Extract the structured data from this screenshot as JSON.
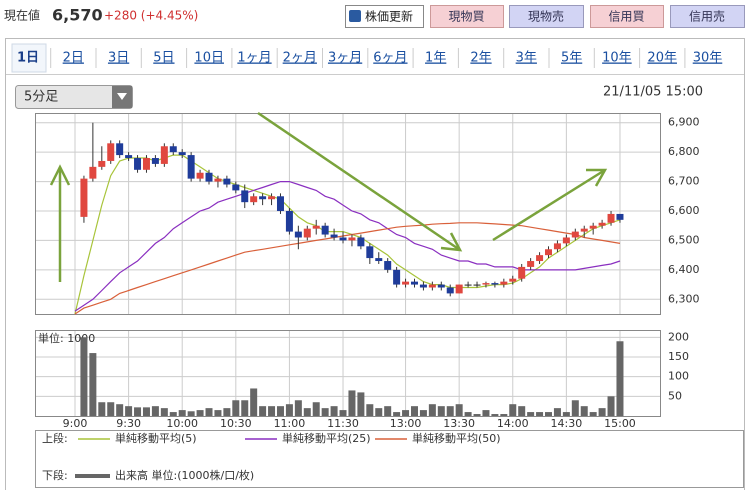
{
  "header": {
    "label": "現在値",
    "price": "6,570",
    "change": "+280 (+4.45%)"
  },
  "buttons": [
    "株価更新",
    "現物買",
    "現物売",
    "信用買",
    "信用売"
  ],
  "tabs": [
    "1日",
    "2日",
    "3日",
    "5日",
    "10日",
    "1ヶ月",
    "2ヶ月",
    "3ヶ月",
    "6ヶ月",
    "1年",
    "2年",
    "3年",
    "5年",
    "10年",
    "20年",
    "30年"
  ],
  "interval": "5分足",
  "timestamp": "21/11/05 15:00",
  "chart_data": {
    "type": "candlestick",
    "categories": [
      "9:00",
      null,
      null,
      null,
      null,
      null,
      "9:30",
      null,
      null,
      null,
      null,
      null,
      "10:00",
      null,
      null,
      null,
      null,
      null,
      "10:30",
      null,
      null,
      null,
      null,
      null,
      "11:00",
      null,
      null,
      null,
      null,
      null,
      "11:30",
      null,
      null,
      null,
      null,
      null,
      null,
      "13:00",
      null,
      null,
      null,
      null,
      null,
      "13:30",
      null,
      null,
      null,
      null,
      null,
      "14:00",
      null,
      null,
      null,
      null,
      null,
      "14:30",
      null,
      null,
      null,
      null,
      null,
      "15:00"
    ],
    "up_color": "#e0473f",
    "down_color": "#1f3c9a",
    "ohlc": [
      null,
      [
        6580,
        6720,
        6560,
        6710
      ],
      [
        6710,
        6900,
        6700,
        6750
      ],
      [
        6750,
        6820,
        6740,
        6770
      ],
      [
        6770,
        6840,
        6760,
        6830
      ],
      [
        6830,
        6840,
        6780,
        6790
      ],
      [
        6790,
        6800,
        6770,
        6780
      ],
      [
        6780,
        6790,
        6730,
        6740
      ],
      [
        6740,
        6790,
        6730,
        6780
      ],
      [
        6780,
        6790,
        6750,
        6760
      ],
      [
        6760,
        6830,
        6750,
        6820
      ],
      [
        6820,
        6830,
        6790,
        6800
      ],
      [
        6800,
        6810,
        6780,
        6790
      ],
      [
        6790,
        6800,
        6700,
        6710
      ],
      [
        6710,
        6740,
        6700,
        6730
      ],
      [
        6730,
        6740,
        6690,
        6700
      ],
      [
        6700,
        6720,
        6680,
        6710
      ],
      [
        6710,
        6720,
        6680,
        6690
      ],
      [
        6690,
        6700,
        6660,
        6670
      ],
      [
        6670,
        6690,
        6610,
        6630
      ],
      [
        6630,
        6660,
        6620,
        6650
      ],
      [
        6650,
        6660,
        6620,
        6640
      ],
      [
        6640,
        6660,
        6620,
        6650
      ],
      [
        6650,
        6660,
        6590,
        6600
      ],
      [
        6600,
        6610,
        6520,
        6530
      ],
      [
        6530,
        6550,
        6470,
        6510
      ],
      [
        6510,
        6550,
        6500,
        6540
      ],
      [
        6540,
        6570,
        6520,
        6550
      ],
      [
        6550,
        6560,
        6510,
        6520
      ],
      [
        6520,
        6540,
        6500,
        6510
      ],
      [
        6510,
        6530,
        6490,
        6500
      ],
      [
        6500,
        6520,
        6480,
        6510
      ],
      [
        6510,
        6520,
        6470,
        6480
      ],
      [
        6480,
        6490,
        6420,
        6440
      ],
      [
        6440,
        6460,
        6420,
        6430
      ],
      [
        6430,
        6440,
        6390,
        6400
      ],
      [
        6400,
        6410,
        6340,
        6350
      ],
      [
        6350,
        6370,
        6340,
        6360
      ],
      [
        6360,
        6370,
        6340,
        6350
      ],
      [
        6350,
        6360,
        6330,
        6340
      ],
      [
        6340,
        6360,
        6330,
        6350
      ],
      [
        6350,
        6360,
        6330,
        6340
      ],
      [
        6340,
        6350,
        6310,
        6320
      ],
      [
        6320,
        6350,
        6320,
        6350
      ],
      [
        6350,
        6360,
        6340,
        6350
      ],
      [
        6350,
        6360,
        6340,
        6350
      ],
      [
        6350,
        6360,
        6340,
        6355
      ],
      [
        6355,
        6360,
        6340,
        6350
      ],
      [
        6350,
        6370,
        6340,
        6360
      ],
      [
        6360,
        6380,
        6350,
        6370
      ],
      [
        6370,
        6420,
        6360,
        6410
      ],
      [
        6410,
        6440,
        6400,
        6430
      ],
      [
        6430,
        6460,
        6420,
        6450
      ],
      [
        6450,
        6480,
        6440,
        6470
      ],
      [
        6470,
        6500,
        6460,
        6490
      ],
      [
        6490,
        6520,
        6480,
        6510
      ],
      [
        6510,
        6540,
        6500,
        6530
      ],
      [
        6530,
        6550,
        6510,
        6540
      ],
      [
        6540,
        6560,
        6520,
        6550
      ],
      [
        6550,
        6570,
        6540,
        6560
      ],
      [
        6560,
        6600,
        6550,
        6590
      ],
      [
        6590,
        6590,
        6560,
        6570
      ]
    ],
    "series": [
      {
        "name": "単純移動平均(5)",
        "color": "#a8c43a",
        "values": [
          6250,
          6380,
          6500,
          6620,
          6720,
          6770,
          6780,
          6780,
          6780,
          6770,
          6780,
          6790,
          6790,
          6770,
          6750,
          6730,
          6710,
          6700,
          6690,
          6680,
          6670,
          6660,
          6650,
          6640,
          6610,
          6580,
          6560,
          6550,
          6530,
          6530,
          6530,
          6520,
          6510,
          6490,
          6470,
          6450,
          6420,
          6400,
          6380,
          6360,
          6350,
          6350,
          6340,
          6340,
          6340,
          6340,
          6345,
          6350,
          6350,
          6355,
          6370,
          6390,
          6410,
          6440,
          6460,
          6480,
          6500,
          6520,
          6540,
          6550,
          6560,
          6570
        ]
      },
      {
        "name": "単純移動平均(25)",
        "color": "#8a2fc0",
        "values": [
          6260,
          6280,
          6300,
          6330,
          6360,
          6390,
          6410,
          6430,
          6460,
          6490,
          6510,
          6540,
          6560,
          6580,
          6600,
          6610,
          6630,
          6640,
          6650,
          6660,
          6670,
          6680,
          6690,
          6700,
          6700,
          6690,
          6680,
          6670,
          6650,
          6640,
          6620,
          6600,
          6590,
          6570,
          6560,
          6540,
          6520,
          6510,
          6490,
          6480,
          6470,
          6450,
          6440,
          6430,
          6430,
          6420,
          6420,
          6410,
          6410,
          6410,
          6400,
          6400,
          6400,
          6400,
          6400,
          6400,
          6400,
          6405,
          6410,
          6415,
          6420,
          6430
        ]
      },
      {
        "name": "単純移動平均(50)",
        "color": "#d9603a",
        "values": [
          6250,
          6270,
          6280,
          6290,
          6300,
          6320,
          6330,
          6340,
          6350,
          6360,
          6370,
          6380,
          6390,
          6400,
          6410,
          6420,
          6430,
          6440,
          6450,
          6460,
          6465,
          6470,
          6475,
          6480,
          6485,
          6490,
          6495,
          6500,
          6505,
          6510,
          6515,
          6520,
          6525,
          6530,
          6535,
          6540,
          6545,
          6548,
          6550,
          6552,
          6555,
          6557,
          6558,
          6560,
          6560,
          6560,
          6558,
          6556,
          6554,
          6552,
          6550,
          6545,
          6540,
          6535,
          6530,
          6525,
          6520,
          6510,
          6505,
          6500,
          6495,
          6490
        ]
      }
    ],
    "ylim": [
      6250,
      6950
    ],
    "yticks": [
      {
        "value": 6300,
        "label": "6,300"
      },
      {
        "value": 6400,
        "label": "6,400"
      },
      {
        "value": 6500,
        "label": "6,500"
      },
      {
        "value": 6600,
        "label": "6,600"
      },
      {
        "value": 6700,
        "label": "6,700"
      },
      {
        "value": 6800,
        "label": "6,800"
      },
      {
        "value": 6900,
        "label": "6,900"
      }
    ],
    "grid": true,
    "volume": {
      "name": "出来高 単位:(1000株/口/枚)",
      "color": "#666666",
      "unit_label": "単位: 1000",
      "values": [
        null,
        200,
        160,
        35,
        35,
        30,
        25,
        22,
        22,
        25,
        20,
        10,
        15,
        12,
        15,
        20,
        15,
        20,
        40,
        40,
        70,
        25,
        25,
        25,
        30,
        40,
        20,
        35,
        20,
        25,
        15,
        65,
        60,
        30,
        20,
        25,
        10,
        15,
        25,
        15,
        30,
        25,
        25,
        30,
        10,
        5,
        15,
        5,
        5,
        30,
        25,
        10,
        10,
        10,
        20,
        10,
        40,
        25,
        10,
        20,
        50,
        190
      ],
      "ylim": [
        0,
        210
      ],
      "yticks": [
        50,
        100,
        150,
        200
      ]
    },
    "legend_labels": {
      "upper": "上段:",
      "lower": "下段:"
    }
  }
}
